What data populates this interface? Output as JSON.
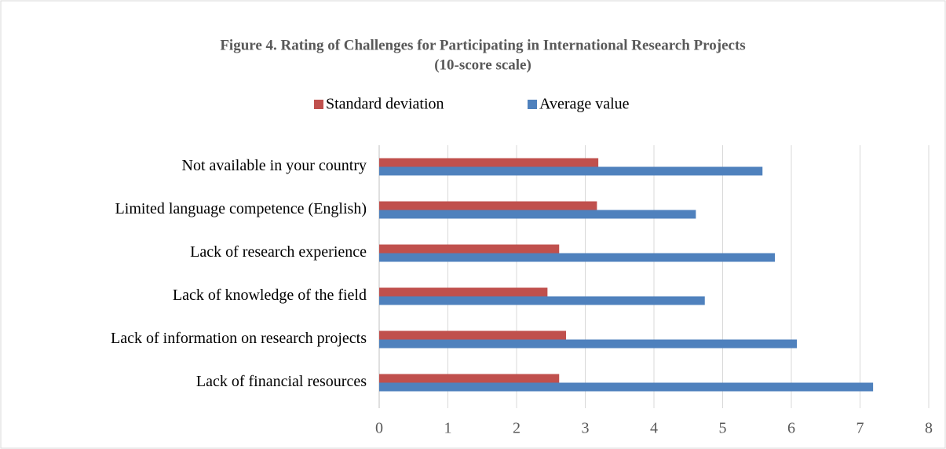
{
  "chart_data": {
    "type": "bar",
    "orientation": "horizontal",
    "title": "Figure 4. Rating of Challenges for Participating in International Research Projects",
    "subtitle": "(10-score scale)",
    "categories": [
      "Not available in your country",
      "Limited language competence (English)",
      "Lack of research experience",
      "Lack of knowledge of the field",
      "Lack of information on research projects",
      "Lack of financial resources"
    ],
    "series": [
      {
        "name": "Standard deviation",
        "color": "#c0504d",
        "values": [
          3.19,
          3.17,
          2.62,
          2.45,
          2.72,
          2.62
        ]
      },
      {
        "name": "Average value",
        "color": "#4f81bd",
        "values": [
          5.58,
          4.61,
          5.76,
          4.74,
          6.08,
          7.19
        ]
      }
    ],
    "xlim": [
      0,
      8
    ],
    "xticks": [
      0,
      1,
      2,
      3,
      4,
      5,
      6,
      7,
      8
    ],
    "grid": true,
    "legend": "top"
  }
}
